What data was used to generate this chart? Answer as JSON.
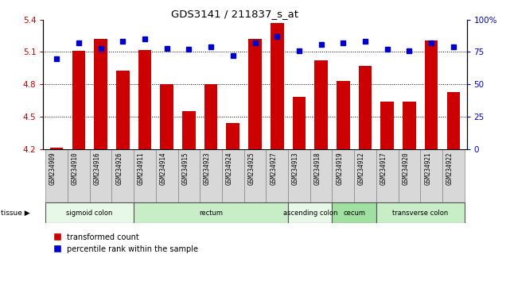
{
  "title": "GDS3141 / 211837_s_at",
  "samples": [
    "GSM234909",
    "GSM234910",
    "GSM234916",
    "GSM234926",
    "GSM234911",
    "GSM234914",
    "GSM234915",
    "GSM234923",
    "GSM234924",
    "GSM234925",
    "GSM234927",
    "GSM234913",
    "GSM234918",
    "GSM234919",
    "GSM234912",
    "GSM234917",
    "GSM234920",
    "GSM234921",
    "GSM234922"
  ],
  "transformed_count": [
    4.21,
    5.11,
    5.22,
    4.93,
    5.12,
    4.8,
    4.55,
    4.8,
    4.44,
    5.22,
    5.37,
    4.68,
    5.02,
    4.83,
    4.97,
    4.64,
    4.64,
    5.21,
    4.73
  ],
  "percentile_rank": [
    70,
    82,
    78,
    83,
    85,
    78,
    77,
    79,
    72,
    82,
    87,
    76,
    81,
    82,
    83,
    77,
    76,
    82,
    79
  ],
  "ylim_left": [
    4.2,
    5.4
  ],
  "ylim_right": [
    0,
    100
  ],
  "yticks_left": [
    4.2,
    4.5,
    4.8,
    5.1,
    5.4
  ],
  "yticks_right": [
    0,
    25,
    50,
    75,
    100
  ],
  "hlines": [
    5.1,
    4.8,
    4.5
  ],
  "tissue_groups": [
    {
      "label": "sigmoid colon",
      "start": 0,
      "end": 4,
      "color": "#e8f8e8"
    },
    {
      "label": "rectum",
      "start": 4,
      "end": 11,
      "color": "#c8eec8"
    },
    {
      "label": "ascending colon",
      "start": 11,
      "end": 13,
      "color": "#e8f8e8"
    },
    {
      "label": "cecum",
      "start": 13,
      "end": 15,
      "color": "#a0e0a0"
    },
    {
      "label": "transverse colon",
      "start": 15,
      "end": 19,
      "color": "#c8eec8"
    }
  ],
  "bar_color": "#cc0000",
  "dot_color": "#0000cc",
  "bar_width": 0.6,
  "label_color_left": "#cc0000",
  "label_color_right": "#0000cc"
}
